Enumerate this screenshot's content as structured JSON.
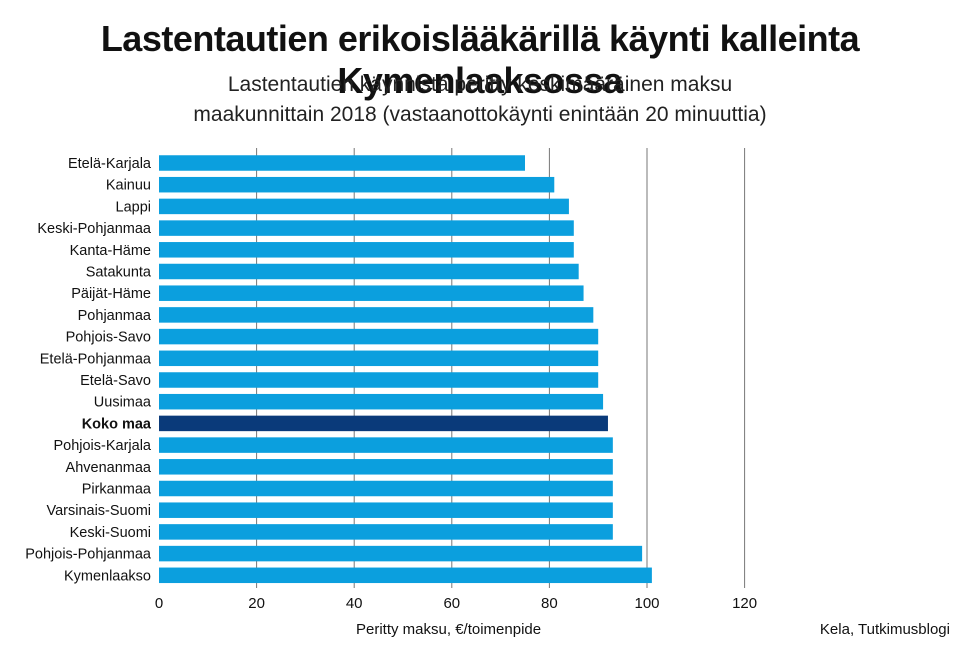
{
  "title": "Lastentautien erikoislääkärillä käynti kalleinta Kymenlaaksossa",
  "subtitle_line1": "Lastentautien käynnistä peritty keskimääräinen maksu",
  "subtitle_line2": "maakunnittain 2018 (vastaanottokäynti enintään 20 minuuttia)",
  "source": "Kela, Tutkimusblogi",
  "colors": {
    "bar": "#0b9fde",
    "highlight": "#0a3a7a",
    "grid": "#777777"
  },
  "chart_data": {
    "type": "bar",
    "orientation": "horizontal",
    "xlabel": "Peritty maksu, €/toimenpide",
    "xlim": [
      0,
      120
    ],
    "xticks": [
      0,
      20,
      40,
      60,
      80,
      100,
      120
    ],
    "grid": true,
    "highlighted_category": "Koko maa",
    "categories": [
      "Etelä-Karjala",
      "Kainuu",
      "Lappi",
      "Keski-Pohjanmaa",
      "Kanta-Häme",
      "Satakunta",
      "Päijät-Häme",
      "Pohjanmaa",
      "Pohjois-Savo",
      "Etelä-Pohjanmaa",
      "Etelä-Savo",
      "Uusimaa",
      "Koko maa",
      "Pohjois-Karjala",
      "Ahvenanmaa",
      "Pirkanmaa",
      "Varsinais-Suomi",
      "Keski-Suomi",
      "Pohjois-Pohjanmaa",
      "Kymenlaakso"
    ],
    "values": [
      75,
      81,
      84,
      85,
      85,
      86,
      87,
      89,
      90,
      90,
      90,
      91,
      92,
      93,
      93,
      93,
      93,
      93,
      99,
      101
    ]
  }
}
